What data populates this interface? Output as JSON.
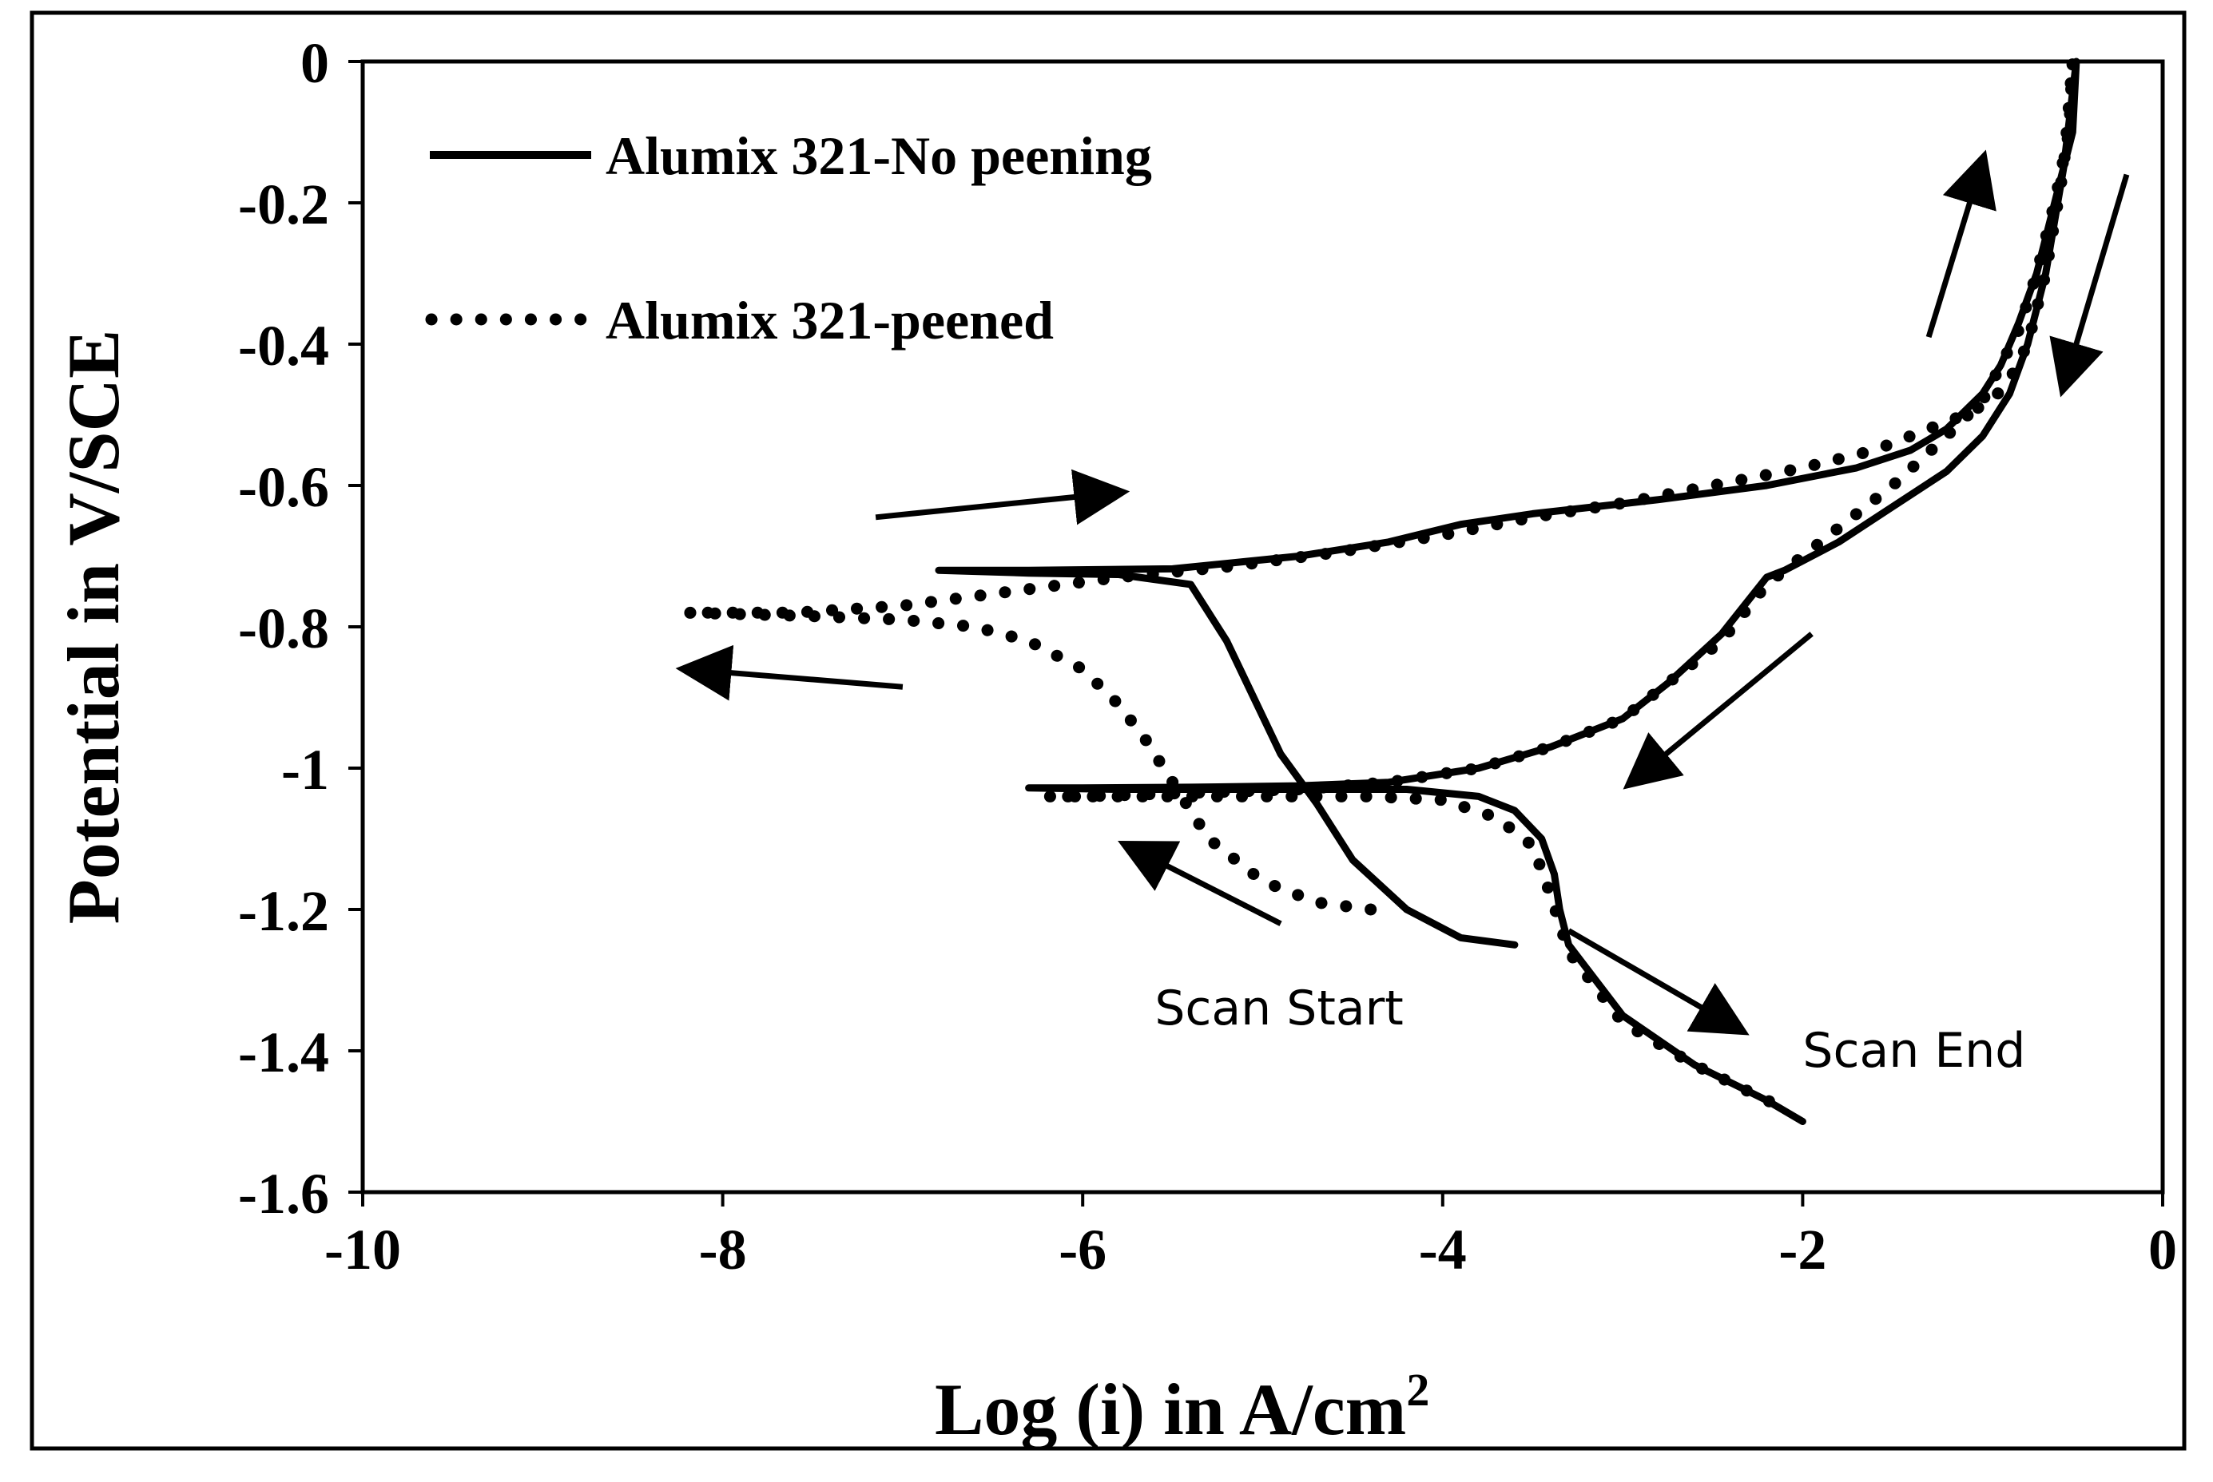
{
  "chart_data": {
    "type": "line",
    "xlabel": "Log (i) in A/cm",
    "xlabel_sup": "2",
    "ylabel": "Potential in V/SCE",
    "xlim": [
      -10,
      0
    ],
    "ylim": [
      -1.6,
      0
    ],
    "x_ticks": [
      -10,
      -8,
      -6,
      -4,
      -2,
      0
    ],
    "x_tick_labels": [
      "-10",
      "-8",
      "-6",
      "-4",
      "-2",
      "0"
    ],
    "y_ticks": [
      0,
      -0.2,
      -0.4,
      -0.6,
      -0.8,
      -1,
      -1.2,
      -1.4,
      -1.6
    ],
    "y_tick_labels": [
      "0",
      "-0.2",
      "-0.4",
      "-0.6",
      "-0.8",
      "-1",
      "-1.2",
      "-1.4",
      "-1.6"
    ],
    "grid": false,
    "legend_position": "top-left",
    "series": [
      {
        "name": "Alumix 321-No peening",
        "style": "solid",
        "color": "#000000",
        "x": [
          -3.6,
          -3.9,
          -4.2,
          -4.5,
          -4.7,
          -4.9,
          -5.05,
          -5.2,
          -5.4,
          -5.8,
          -6.3,
          -6.8,
          -6.3,
          -5.5,
          -4.8,
          -4.3,
          -3.9,
          -3.5,
          -2.8,
          -2.2,
          -1.7,
          -1.4,
          -1.2,
          -1.0,
          -0.9,
          -0.8,
          -0.7,
          -0.6,
          -0.5,
          -0.48,
          -0.55,
          -0.65,
          -0.75,
          -0.85,
          -1.0,
          -1.2,
          -1.5,
          -1.8,
          -2.1,
          -2.2,
          -2.45,
          -2.75,
          -3.0,
          -3.4,
          -3.8,
          -4.3,
          -4.8,
          -5.4,
          -6.0,
          -6.3,
          -5.8,
          -5.0,
          -4.2,
          -3.8,
          -3.6,
          -3.45,
          -3.38,
          -3.35,
          -3.3,
          -3.0,
          -2.6,
          -2.2,
          -2.0
        ],
        "y": [
          -1.25,
          -1.24,
          -1.2,
          -1.13,
          -1.05,
          -0.98,
          -0.9,
          -0.82,
          -0.74,
          -0.726,
          -0.724,
          -0.72,
          -0.72,
          -0.718,
          -0.7,
          -0.68,
          -0.655,
          -0.64,
          -0.62,
          -0.6,
          -0.575,
          -0.55,
          -0.52,
          -0.47,
          -0.43,
          -0.37,
          -0.3,
          -0.2,
          -0.1,
          0.0,
          -0.15,
          -0.3,
          -0.4,
          -0.47,
          -0.53,
          -0.58,
          -0.63,
          -0.68,
          -0.72,
          -0.73,
          -0.81,
          -0.88,
          -0.93,
          -0.97,
          -1.0,
          -1.02,
          -1.025,
          -1.027,
          -1.028,
          -1.028,
          -1.03,
          -1.03,
          -1.03,
          -1.04,
          -1.06,
          -1.1,
          -1.15,
          -1.2,
          -1.25,
          -1.35,
          -1.42,
          -1.47,
          -1.5
        ]
      },
      {
        "name": "Alumix 321-peened",
        "style": "dotted",
        "color": "#000000",
        "x": [
          -4.4,
          -4.7,
          -5.0,
          -5.3,
          -5.5,
          -5.65,
          -5.8,
          -6.0,
          -6.3,
          -6.6,
          -7.0,
          -7.5,
          -8.2,
          -7.6,
          -7.0,
          -6.4,
          -5.8,
          -5.2,
          -4.6,
          -4.0,
          -3.5,
          -3.0,
          -2.5,
          -2.0,
          -1.6,
          -1.3,
          -1.1,
          -0.95,
          -0.85,
          -0.75,
          -0.65,
          -0.55,
          -0.5,
          -0.52,
          -0.6,
          -0.7,
          -0.8,
          -0.9,
          -1.0,
          -1.2,
          -1.5,
          -1.8,
          -2.1,
          -2.2,
          -2.45,
          -2.75,
          -3.0,
          -3.4,
          -3.8,
          -4.3,
          -4.8,
          -5.4,
          -6.0,
          -6.2,
          -5.8,
          -5.0,
          -4.4,
          -4.0,
          -3.7,
          -3.5,
          -3.4,
          -3.3,
          -3.0,
          -2.6,
          -2.2,
          -2.1
        ],
        "y": [
          -1.2,
          -1.19,
          -1.16,
          -1.1,
          -1.02,
          -0.96,
          -0.91,
          -0.86,
          -0.82,
          -0.8,
          -0.79,
          -0.785,
          -0.78,
          -0.78,
          -0.77,
          -0.75,
          -0.73,
          -0.715,
          -0.695,
          -0.67,
          -0.645,
          -0.625,
          -0.6,
          -0.575,
          -0.55,
          -0.52,
          -0.5,
          -0.48,
          -0.45,
          -0.4,
          -0.3,
          -0.15,
          0.0,
          -0.1,
          -0.2,
          -0.3,
          -0.38,
          -0.43,
          -0.48,
          -0.53,
          -0.6,
          -0.66,
          -0.72,
          -0.74,
          -0.82,
          -0.88,
          -0.93,
          -0.97,
          -1.0,
          -1.02,
          -1.03,
          -1.035,
          -1.04,
          -1.04,
          -1.04,
          -1.04,
          -1.04,
          -1.045,
          -1.07,
          -1.11,
          -1.18,
          -1.26,
          -1.36,
          -1.42,
          -1.47,
          -1.48
        ]
      }
    ],
    "annotations": [
      {
        "text": "Scan Start",
        "x": -5.6,
        "y": -1.34
      },
      {
        "text": "Scan End",
        "x": -2.0,
        "y": -1.4
      }
    ],
    "arrows": [
      {
        "from": [
          -7.15,
          -0.645
        ],
        "to": [
          -5.8,
          -0.61
        ]
      },
      {
        "from": [
          -7.0,
          -0.885
        ],
        "to": [
          -8.2,
          -0.86
        ]
      },
      {
        "from": [
          -4.9,
          -1.22
        ],
        "to": [
          -5.75,
          -1.11
        ]
      },
      {
        "from": [
          -3.3,
          -1.23
        ],
        "to": [
          -2.35,
          -1.37
        ]
      },
      {
        "from": [
          -1.95,
          -0.81
        ],
        "to": [
          -2.95,
          -1.02
        ]
      },
      {
        "from": [
          -1.3,
          -0.39
        ],
        "to": [
          -1.0,
          -0.14
        ]
      },
      {
        "from": [
          -0.2,
          -0.16
        ],
        "to": [
          -0.55,
          -0.46
        ]
      }
    ]
  }
}
